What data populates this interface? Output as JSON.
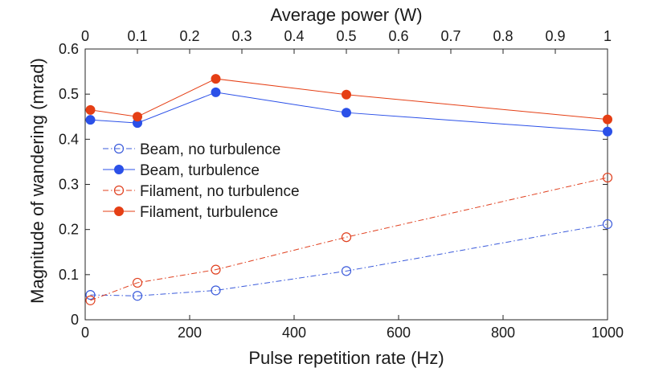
{
  "chart_data": {
    "type": "line",
    "title": "",
    "xlabel": "Pulse repetition rate (Hz)",
    "ylabel": "Magnitude of wandering (mrad)",
    "x2label": "Average power (W)",
    "xlim": [
      0,
      1000
    ],
    "ylim": [
      0,
      0.6
    ],
    "x2lim": [
      0,
      1
    ],
    "xticks": [
      0,
      200,
      400,
      600,
      800,
      1000
    ],
    "xtick_labels": [
      "0",
      "200",
      "400",
      "600",
      "800",
      "1000"
    ],
    "yticks": [
      0,
      0.1,
      0.2,
      0.3,
      0.4,
      0.5,
      0.6
    ],
    "ytick_labels": [
      "0",
      "0.1",
      "0.2",
      "0.3",
      "0.4",
      "0.5",
      "0.6"
    ],
    "x2ticks": [
      0,
      0.1,
      0.2,
      0.3,
      0.4,
      0.5,
      0.6,
      0.7,
      0.8,
      0.9,
      1
    ],
    "x2tick_labels": [
      "0",
      "0.1",
      "0.2",
      "0.3",
      "0.4",
      "0.5",
      "0.6",
      "0.7",
      "0.8",
      "0.9",
      "1"
    ],
    "grid": false,
    "legend_position": "center-left",
    "x": [
      10,
      100,
      250,
      500,
      1000
    ],
    "series": [
      {
        "name": "Beam, no turbulence",
        "values": [
          0.055,
          0.053,
          0.065,
          0.108,
          0.212
        ],
        "color": "#3b5bdb",
        "line_style": "dash-dot",
        "marker": "open-circle"
      },
      {
        "name": "Beam, turbulence",
        "values": [
          0.443,
          0.436,
          0.504,
          0.459,
          0.417
        ],
        "color": "#2b50e8",
        "line_style": "solid",
        "marker": "filled-circle"
      },
      {
        "name": "Filament, no turbulence",
        "values": [
          0.043,
          0.082,
          0.111,
          0.183,
          0.315
        ],
        "color": "#e0401f",
        "line_style": "dash-dot",
        "marker": "open-circle"
      },
      {
        "name": "Filament, turbulence",
        "values": [
          0.465,
          0.45,
          0.534,
          0.499,
          0.444
        ],
        "color": "#e53f15",
        "line_style": "solid",
        "marker": "filled-circle"
      }
    ]
  }
}
